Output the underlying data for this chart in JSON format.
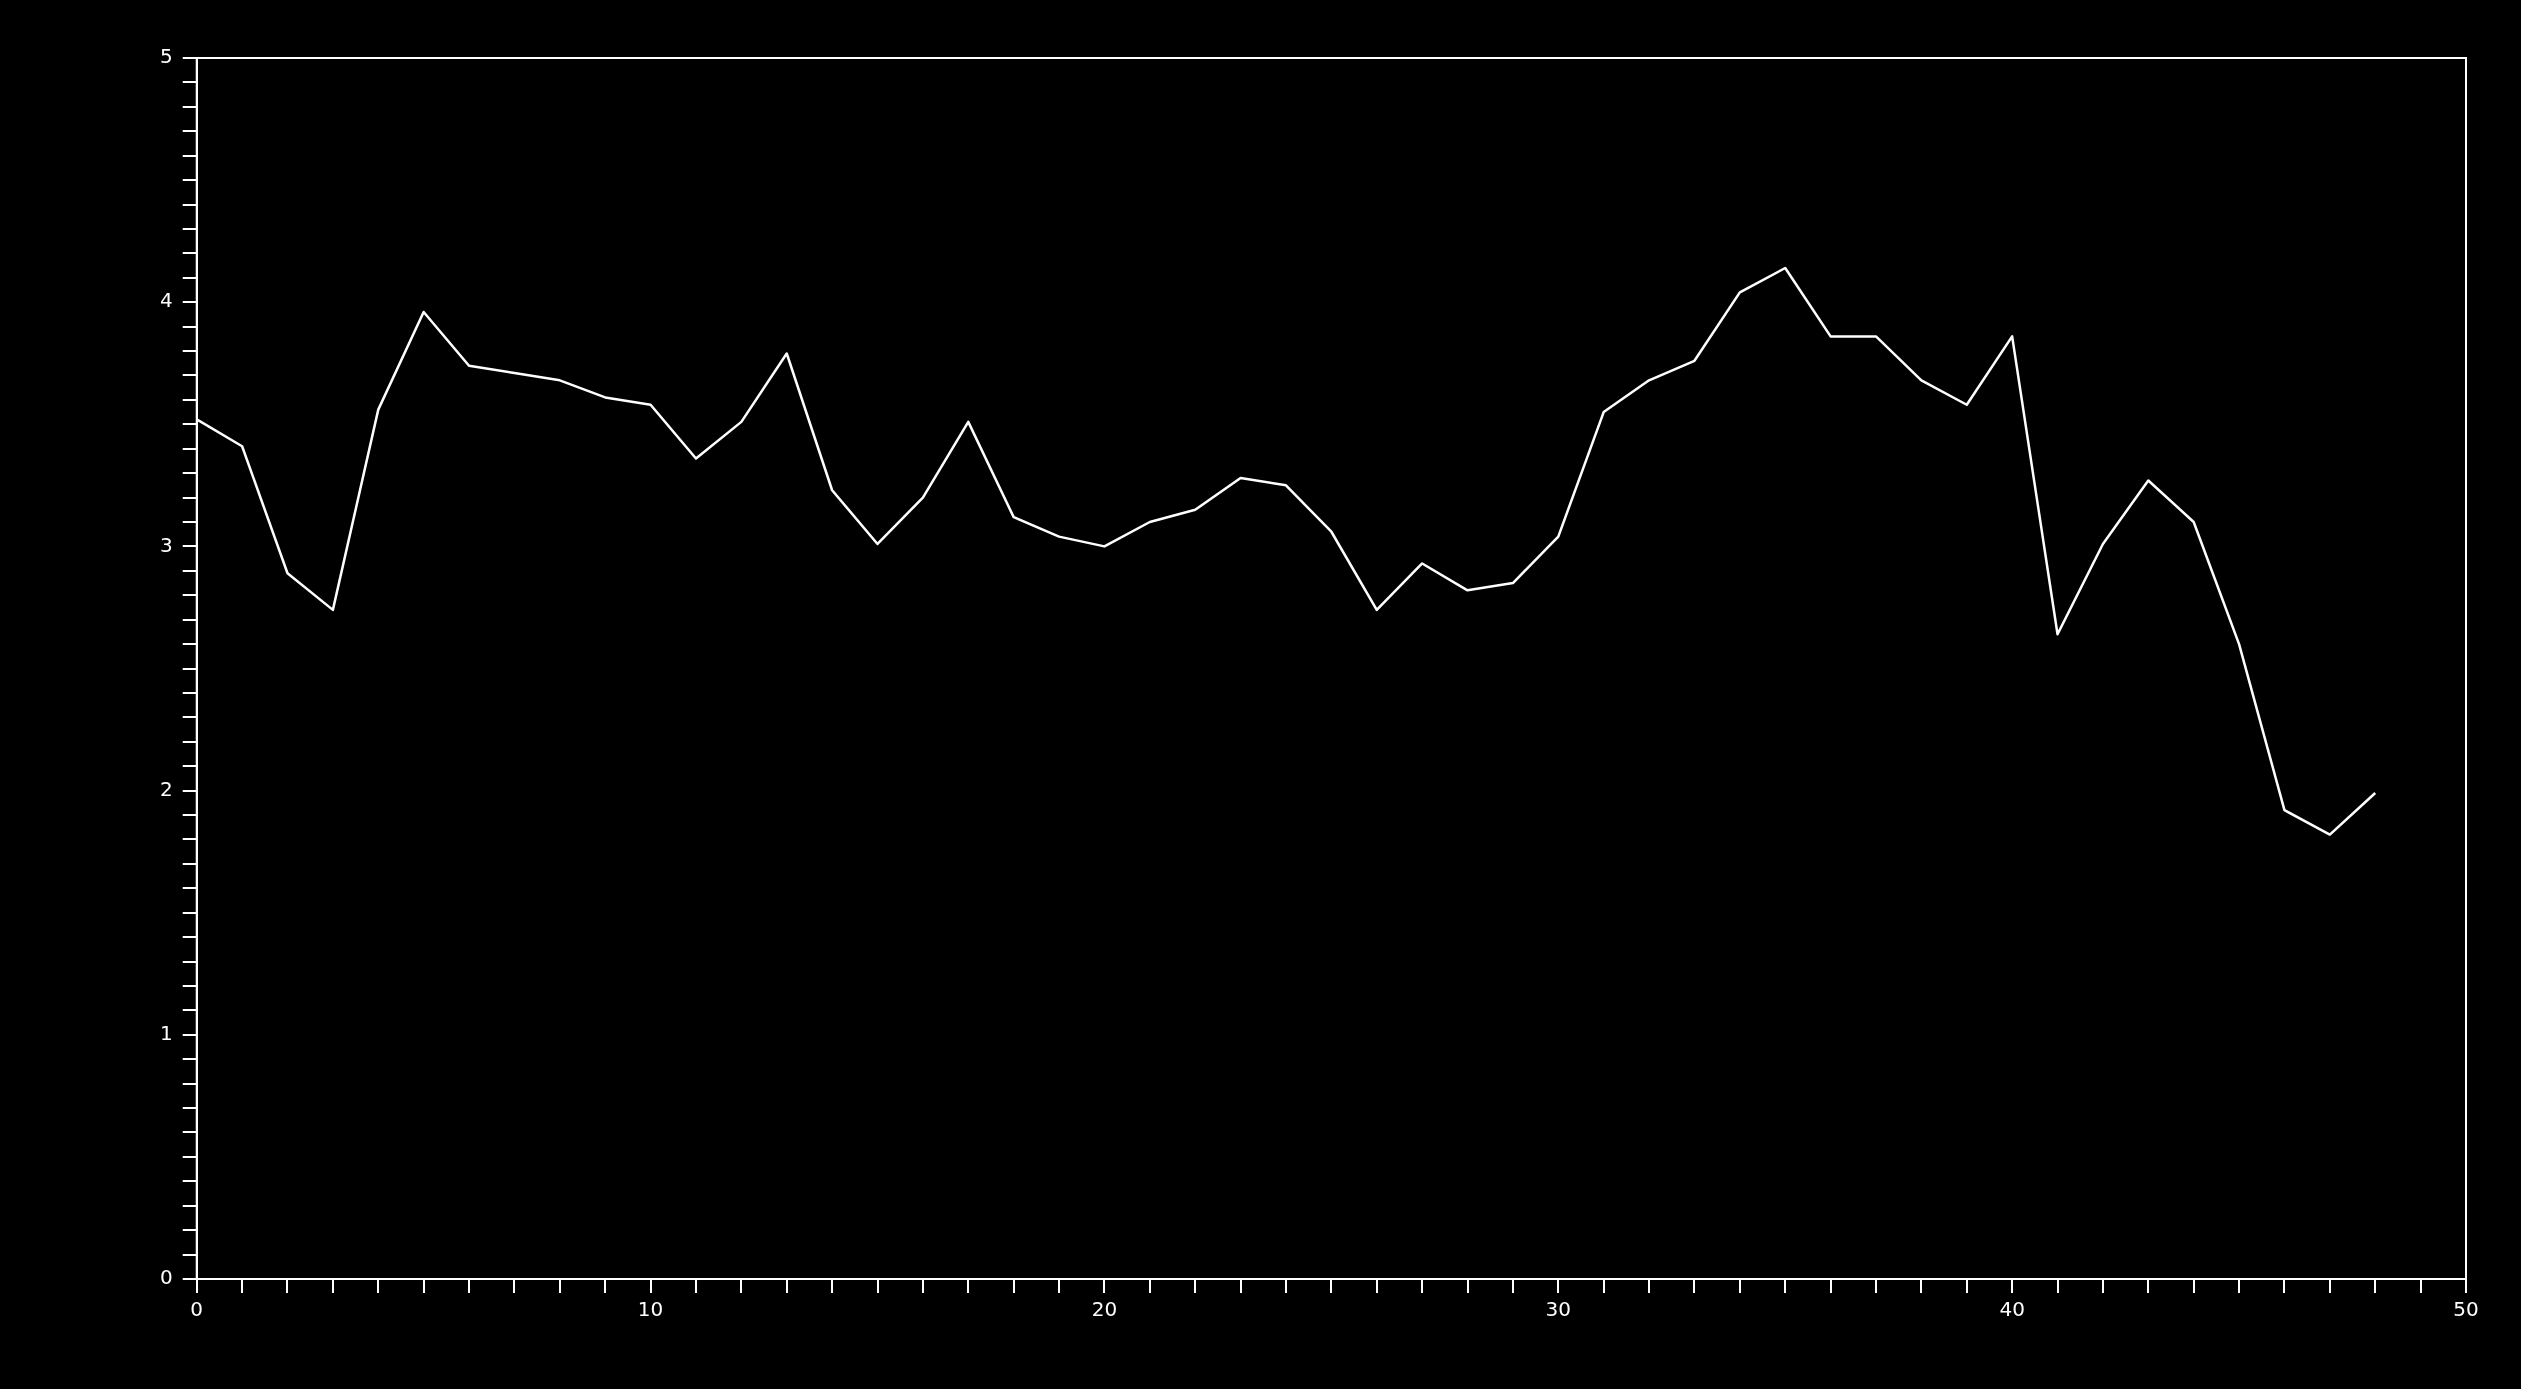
{
  "chart_data": {
    "type": "line",
    "x": [
      0,
      1,
      2,
      3,
      4,
      5,
      6,
      7,
      8,
      9,
      10,
      11,
      12,
      13,
      14,
      15,
      16,
      17,
      18,
      19,
      20,
      21,
      22,
      23,
      24,
      25,
      26,
      27,
      28,
      29,
      30,
      31,
      32,
      33,
      34,
      35,
      36,
      37,
      38,
      39,
      40,
      41,
      42,
      43,
      44,
      45,
      46,
      47,
      48
    ],
    "series": [
      {
        "color": "#ffffff",
        "values": [
          3.52,
          3.41,
          2.89,
          2.74,
          3.56,
          3.96,
          3.74,
          3.71,
          3.68,
          3.61,
          3.58,
          3.36,
          3.51,
          3.79,
          3.23,
          3.01,
          3.2,
          3.51,
          3.12,
          3.04,
          3.0,
          3.1,
          3.15,
          3.28,
          3.25,
          3.06,
          2.74,
          2.93,
          2.82,
          2.85,
          3.04,
          3.55,
          3.68,
          3.76,
          4.04,
          4.14,
          3.86,
          3.86,
          3.68,
          3.58,
          3.86,
          2.64,
          3.01,
          3.27,
          3.1,
          2.6,
          1.92,
          1.82,
          1.99
        ]
      }
    ],
    "xlim": [
      0,
      50
    ],
    "ylim": [
      0,
      5
    ],
    "xticks": [
      0,
      {
        "value": 1,
        "label": null
      },
      {
        "value": 2,
        "label": null
      },
      {
        "value": 3,
        "label": null
      },
      {
        "value": 4,
        "label": null
      },
      {
        "value": 5,
        "label": null
      },
      {
        "value": 6,
        "label": null
      },
      {
        "value": 7,
        "label": null
      },
      {
        "value": 8,
        "label": null
      },
      {
        "value": 9,
        "label": null
      },
      10,
      {
        "value": 11,
        "label": null
      },
      {
        "value": 12,
        "label": null
      },
      {
        "value": 13,
        "label": null
      },
      {
        "value": 14,
        "label": null
      },
      {
        "value": 15,
        "label": null
      },
      {
        "value": 16,
        "label": null
      },
      {
        "value": 17,
        "label": null
      },
      {
        "value": 18,
        "label": null
      },
      {
        "value": 19,
        "label": null
      },
      20,
      {
        "value": 21,
        "label": null
      },
      {
        "value": 22,
        "label": null
      },
      {
        "value": 23,
        "label": null
      },
      {
        "value": 24,
        "label": null
      },
      {
        "value": 25,
        "label": null
      },
      {
        "value": 26,
        "label": null
      },
      {
        "value": 27,
        "label": null
      },
      {
        "value": 28,
        "label": null
      },
      {
        "value": 29,
        "label": null
      },
      30,
      {
        "value": 31,
        "label": null
      },
      {
        "value": 32,
        "label": null
      },
      {
        "value": 33,
        "label": null
      },
      {
        "value": 34,
        "label": null
      },
      {
        "value": 35,
        "label": null
      },
      {
        "value": 36,
        "label": null
      },
      {
        "value": 37,
        "label": null
      },
      {
        "value": 38,
        "label": null
      },
      {
        "value": 39,
        "label": null
      },
      40,
      {
        "value": 41,
        "label": null
      },
      {
        "value": 42,
        "label": null
      },
      {
        "value": 43,
        "label": null
      },
      {
        "value": 44,
        "label": null
      },
      {
        "value": 45,
        "label": null
      },
      {
        "value": 46,
        "label": null
      },
      {
        "value": 47,
        "label": null
      },
      {
        "value": 48,
        "label": null
      },
      {
        "value": 49,
        "label": null
      },
      50
    ],
    "yticks": [
      0,
      {
        "value": 0.1,
        "label": null
      },
      {
        "value": 0.2,
        "label": null
      },
      {
        "value": 0.3,
        "label": null
      },
      {
        "value": 0.4,
        "label": null
      },
      {
        "value": 0.5,
        "label": null
      },
      {
        "value": 0.6,
        "label": null
      },
      {
        "value": 0.7,
        "label": null
      },
      {
        "value": 0.8,
        "label": null
      },
      {
        "value": 0.9,
        "label": null
      },
      1,
      {
        "value": 1.1,
        "label": null
      },
      {
        "value": 1.2,
        "label": null
      },
      {
        "value": 1.3,
        "label": null
      },
      {
        "value": 1.4,
        "label": null
      },
      {
        "value": 1.5,
        "label": null
      },
      {
        "value": 1.6,
        "label": null
      },
      {
        "value": 1.7,
        "label": null
      },
      {
        "value": 1.8,
        "label": null
      },
      {
        "value": 1.9,
        "label": null
      },
      2,
      {
        "value": 2.1,
        "label": null
      },
      {
        "value": 2.2,
        "label": null
      },
      {
        "value": 2.3,
        "label": null
      },
      {
        "value": 2.4,
        "label": null
      },
      {
        "value": 2.5,
        "label": null
      },
      {
        "value": 2.6,
        "label": null
      },
      {
        "value": 2.7,
        "label": null
      },
      {
        "value": 2.8,
        "label": null
      },
      {
        "value": 2.9,
        "label": null
      },
      3,
      {
        "value": 3.1,
        "label": null
      },
      {
        "value": 3.2,
        "label": null
      },
      {
        "value": 3.3,
        "label": null
      },
      {
        "value": 3.4,
        "label": null
      },
      {
        "value": 3.5,
        "label": null
      },
      {
        "value": 3.6,
        "label": null
      },
      {
        "value": 3.7,
        "label": null
      },
      {
        "value": 3.8,
        "label": null
      },
      {
        "value": 3.9,
        "label": null
      },
      4,
      {
        "value": 4.1,
        "label": null
      },
      {
        "value": 4.2,
        "label": null
      },
      {
        "value": 4.3,
        "label": null
      },
      {
        "value": 4.4,
        "label": null
      },
      {
        "value": 4.5,
        "label": null
      },
      {
        "value": 4.6,
        "label": null
      },
      {
        "value": 4.7,
        "label": null
      },
      {
        "value": 4.8,
        "label": null
      },
      {
        "value": 4.9,
        "label": null
      },
      5
    ],
    "grid": false,
    "legend": false,
    "marker": "none",
    "line_style": "solid"
  }
}
